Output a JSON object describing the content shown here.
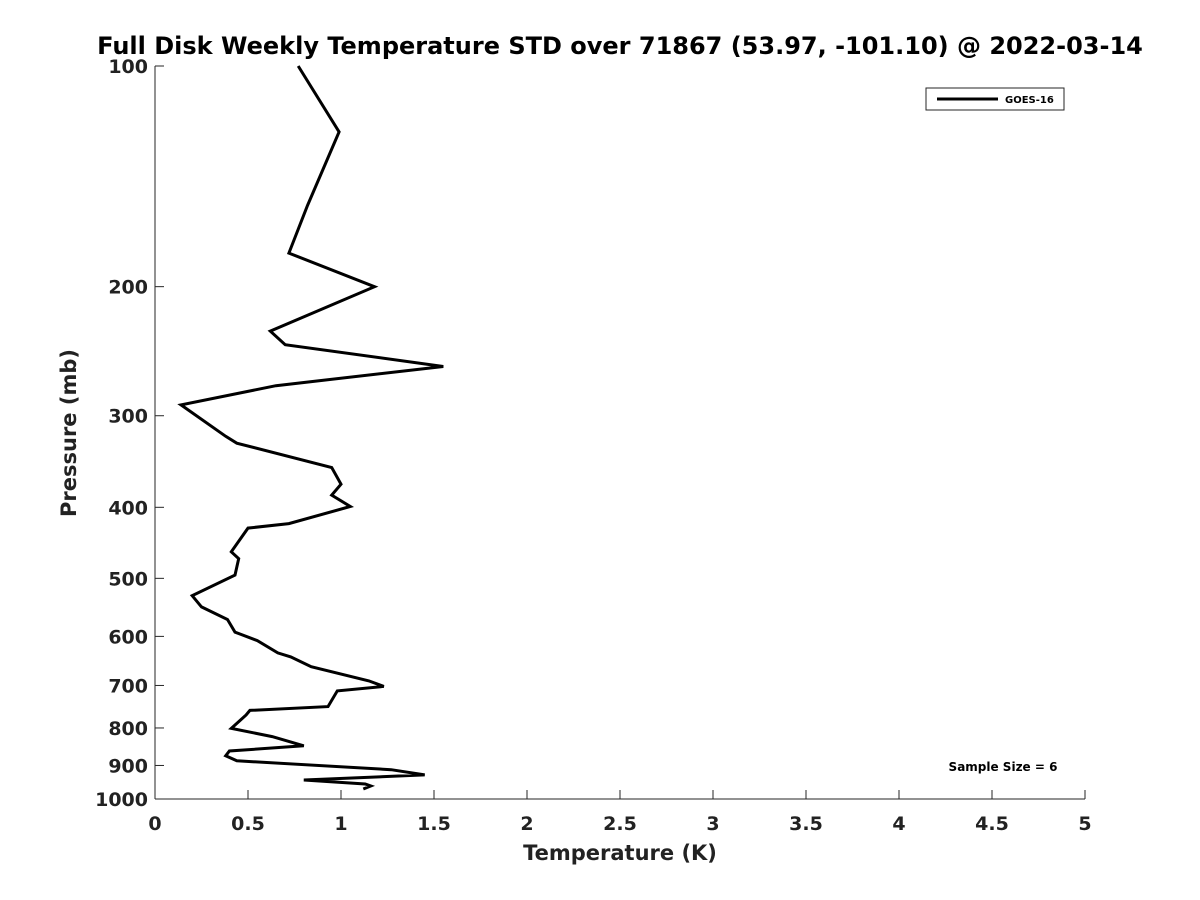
{
  "chart_data": {
    "type": "line",
    "title": "Full Disk Weekly Temperature STD over 71867 (53.97, -101.10) @ 2022-03-14",
    "xlabel": "Temperature (K)",
    "ylabel": "Pressure (mb)",
    "xlim": [
      0,
      5
    ],
    "ylim": [
      100,
      1000
    ],
    "y_scale": "log",
    "y_direction": "reversed",
    "x_ticks": [
      "0",
      "0.5",
      "1",
      "1.5",
      "2",
      "2.5",
      "3",
      "3.5",
      "4",
      "4.5",
      "5"
    ],
    "y_ticks": [
      "100",
      "200",
      "300",
      "400",
      "500",
      "600",
      "700",
      "800",
      "900",
      "1000"
    ],
    "grid": false,
    "legend_position": "top-right",
    "annotation": "Sample Size = 6",
    "series": [
      {
        "name": "GOES-16",
        "color": "#000000",
        "x": [
          0.77,
          0.99,
          0.82,
          0.72,
          1.18,
          0.62,
          0.7,
          1.55,
          0.65,
          0.14,
          0.38,
          0.44,
          0.95,
          1.0,
          0.95,
          1.05,
          0.72,
          0.5,
          0.41,
          0.45,
          0.43,
          0.2,
          0.25,
          0.39,
          0.43,
          0.55,
          0.66,
          0.73,
          0.84,
          1.15,
          1.23,
          0.98,
          0.93,
          0.51,
          0.49,
          0.41,
          0.63,
          0.8,
          0.4,
          0.38,
          0.44,
          1.27,
          1.45,
          0.8,
          1.13,
          1.16,
          1.12
        ],
        "y": [
          100,
          123,
          155,
          180,
          200,
          230,
          240,
          257,
          273,
          290,
          320,
          327,
          353,
          372,
          385,
          399,
          421,
          427,
          460,
          470,
          495,
          528,
          547,
          569,
          592,
          608,
          632,
          640,
          660,
          690,
          702,
          712,
          748,
          757,
          768,
          801,
          822,
          846,
          860,
          873,
          887,
          912,
          927,
          942,
          954,
          960,
          969
        ]
      }
    ]
  }
}
